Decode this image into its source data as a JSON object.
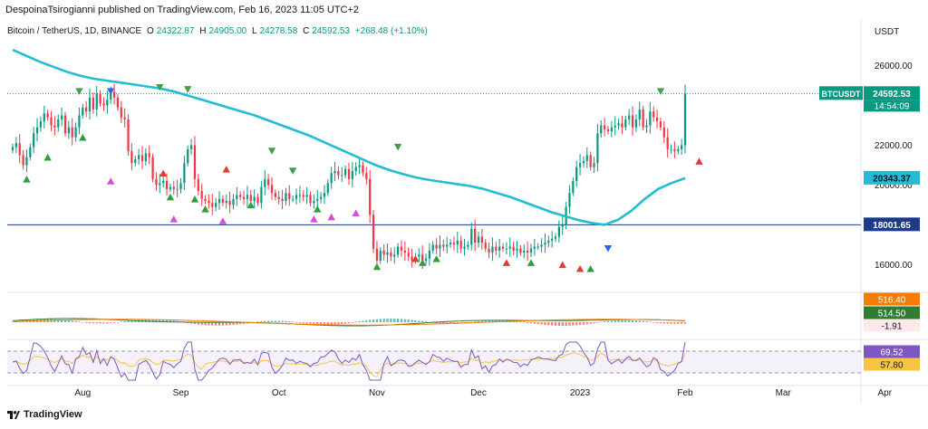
{
  "header": {
    "published_text": "DespoinaTsirogianni published on TradingView.com, Feb 16, 2023 11:05 UTC+2"
  },
  "legend": {
    "symbol": "Bitcoin / TetherUS, 1D, BINANCE",
    "open_label": "O",
    "open": "24322.87",
    "high_label": "H",
    "high": "24905.00",
    "low_label": "L",
    "low": "24278.58",
    "close_label": "C",
    "close": "24592.53",
    "change": "+268.48 (+1.10%)"
  },
  "footer": {
    "brand": "TradingView"
  },
  "colors": {
    "up": "#089981",
    "down": "#f23645",
    "ma": "#22bcd4",
    "hline": "#1e3a8a",
    "macd_line": "#2e7d32",
    "signal_line": "#f57c00",
    "rsi_line": "#7e57c2",
    "rsi_ma": "#f6c544",
    "rsi_band": "#ede7f6"
  },
  "chart_data": [
    {
      "type": "candlestick",
      "title": "Bitcoin / TetherUS, 1D, BINANCE",
      "y_axis_label": "USDT",
      "y_ticks": [
        16000,
        18000,
        20000,
        22000,
        26000
      ],
      "y_tick_labels": [
        "16000.00",
        "18000.00",
        "20000.00",
        "22000.00",
        "26000.00"
      ],
      "ylim": [
        14650,
        27300
      ],
      "x_ticks": [
        "Aug",
        "Sep",
        "Oct",
        "Nov",
        "Dec",
        "2023",
        "Feb",
        "Mar",
        "Apr"
      ],
      "closes": [
        21900,
        22100,
        21500,
        21000,
        21400,
        21900,
        22600,
        22900,
        23200,
        23600,
        23400,
        23000,
        22900,
        23300,
        23500,
        22600,
        22900,
        22400,
        22900,
        23500,
        23900,
        23700,
        24400,
        23800,
        24600,
        24100,
        24000,
        24300,
        24700,
        24400,
        23900,
        23400,
        23300,
        21700,
        21100,
        21300,
        21500,
        21200,
        21600,
        21400,
        20300,
        20000,
        20100,
        20200,
        19800,
        19900,
        19800,
        19800,
        20100,
        21100,
        21800,
        22000,
        20300,
        19700,
        19300,
        19200,
        19100,
        18900,
        19100,
        19300,
        19100,
        19200,
        19000,
        19300,
        19500,
        19400,
        19300,
        19500,
        19200,
        19400,
        19100,
        19900,
        20300,
        20000,
        19600,
        19400,
        19300,
        19200,
        19600,
        19300,
        19300,
        19500,
        19500,
        19400,
        19500,
        19100,
        19200,
        19300,
        19400,
        19600,
        20100,
        20600,
        20700,
        20500,
        20500,
        20800,
        20300,
        20700,
        20900,
        21000,
        20600,
        20300,
        18500,
        16800,
        16200,
        16700,
        16500,
        16600,
        16400,
        16500,
        16900,
        16700,
        16600,
        16400,
        16200,
        16400,
        16500,
        16200,
        16300,
        16700,
        17000,
        16800,
        17000,
        16900,
        17000,
        17100,
        17000,
        17200,
        16800,
        16900,
        17000,
        17800,
        17100,
        17400,
        17100,
        16800,
        16600,
        16900,
        16700,
        16900,
        16800,
        16800,
        16900,
        16700,
        16800,
        16600,
        16700,
        16600,
        16800,
        16900,
        16900,
        17000,
        17100,
        17200,
        17300,
        17400,
        17900,
        18000,
        18900,
        19600,
        20200,
        20900,
        21100,
        21200,
        21500,
        20900,
        21100,
        22600,
        23000,
        22800,
        22700,
        22900,
        23000,
        23100,
        22900,
        23300,
        23500,
        22900,
        23300,
        23800,
        22900,
        23000,
        23700,
        23400,
        23200,
        22900,
        22400,
        21800,
        21800,
        21700,
        21800,
        22000,
        24600
      ],
      "ma_line": [
        26800,
        26500,
        26200,
        25950,
        25700,
        25500,
        25350,
        25250,
        25150,
        25050,
        24950,
        24850,
        24700,
        24500,
        24300,
        24100,
        23900,
        23700,
        23500,
        23250,
        23000,
        22750,
        22500,
        22200,
        21900,
        21600,
        21300,
        21000,
        20750,
        20550,
        20380,
        20250,
        20150,
        20050,
        19950,
        19800,
        19600,
        19400,
        19150,
        18900,
        18650,
        18450,
        18250,
        18100,
        18000,
        18250,
        18700,
        19300,
        19800,
        20100,
        20343
      ],
      "hline_value": 18001.65,
      "price_labels": [
        {
          "label": "BTCUSDT",
          "value": "24592.53",
          "time": "14:54:09"
        },
        {
          "value": "20343.37"
        },
        {
          "value": "18001.65"
        }
      ],
      "up_markers": [
        [
          4,
          20300
        ],
        [
          10,
          21400
        ],
        [
          20,
          22400
        ],
        [
          45,
          19400
        ],
        [
          52,
          19300
        ],
        [
          55,
          18800
        ],
        [
          68,
          19000
        ],
        [
          87,
          18800
        ],
        [
          104,
          15900
        ],
        [
          117,
          16100
        ],
        [
          121,
          16300
        ],
        [
          148,
          16100
        ],
        [
          165,
          15800
        ]
      ],
      "down_markers": [
        [
          19,
          24700
        ],
        [
          42,
          24900
        ],
        [
          50,
          24800
        ],
        [
          74,
          21700
        ],
        [
          80,
          20700
        ],
        [
          110,
          21900
        ],
        [
          185,
          24700
        ]
      ],
      "red_up_markers": [
        [
          43,
          20600
        ],
        [
          61,
          20800
        ],
        [
          115,
          16300
        ],
        [
          141,
          16100
        ],
        [
          157,
          16000
        ],
        [
          162,
          15800
        ],
        [
          196,
          21200
        ]
      ],
      "pink_markers": [
        [
          28,
          20200
        ],
        [
          46,
          18300
        ],
        [
          60,
          18200
        ],
        [
          86,
          18300
        ],
        [
          91,
          18400
        ],
        [
          98,
          18600
        ]
      ],
      "blue_down_markers": [
        [
          28,
          24700
        ],
        [
          170,
          16800
        ]
      ]
    },
    {
      "type": "macd",
      "labels": [
        "516.40",
        "514.50",
        "-1.91"
      ],
      "label_colors": [
        "#f57c00",
        "#2e7d32",
        "#f23645"
      ]
    },
    {
      "type": "rsi",
      "labels": [
        "69.52",
        "57.80"
      ],
      "label_colors": [
        "#7e57c2",
        "#f6c544"
      ],
      "upper_band": 70,
      "lower_band": 30
    }
  ]
}
